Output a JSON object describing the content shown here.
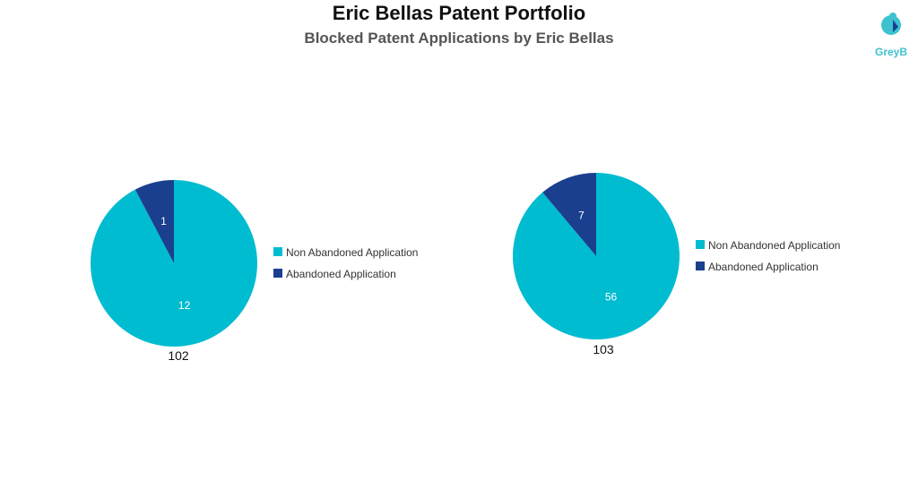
{
  "chart_data": [
    {
      "type": "pie",
      "title": "Eric Bellas Patent Portfolio",
      "subtitle": "Blocked Patent Applications by Eric Bellas",
      "xlabel": "102",
      "slices": [
        {
          "name": "Non Abandoned Application",
          "value": 12,
          "color": "#00bcd0"
        },
        {
          "name": "Abandoned Application",
          "value": 1,
          "color": "#1a3f8f"
        }
      ],
      "legend": "right"
    },
    {
      "type": "pie",
      "xlabel": "103",
      "slices": [
        {
          "name": "Non Abandoned Application",
          "value": 56,
          "color": "#00bcd0"
        },
        {
          "name": "Abandoned Application",
          "value": 7,
          "color": "#1a3f8f"
        }
      ],
      "legend": "right"
    }
  ],
  "title": "Eric Bellas Patent Portfolio",
  "subtitle": "Blocked Patent Applications by Eric Bellas",
  "logo": "GreyB"
}
